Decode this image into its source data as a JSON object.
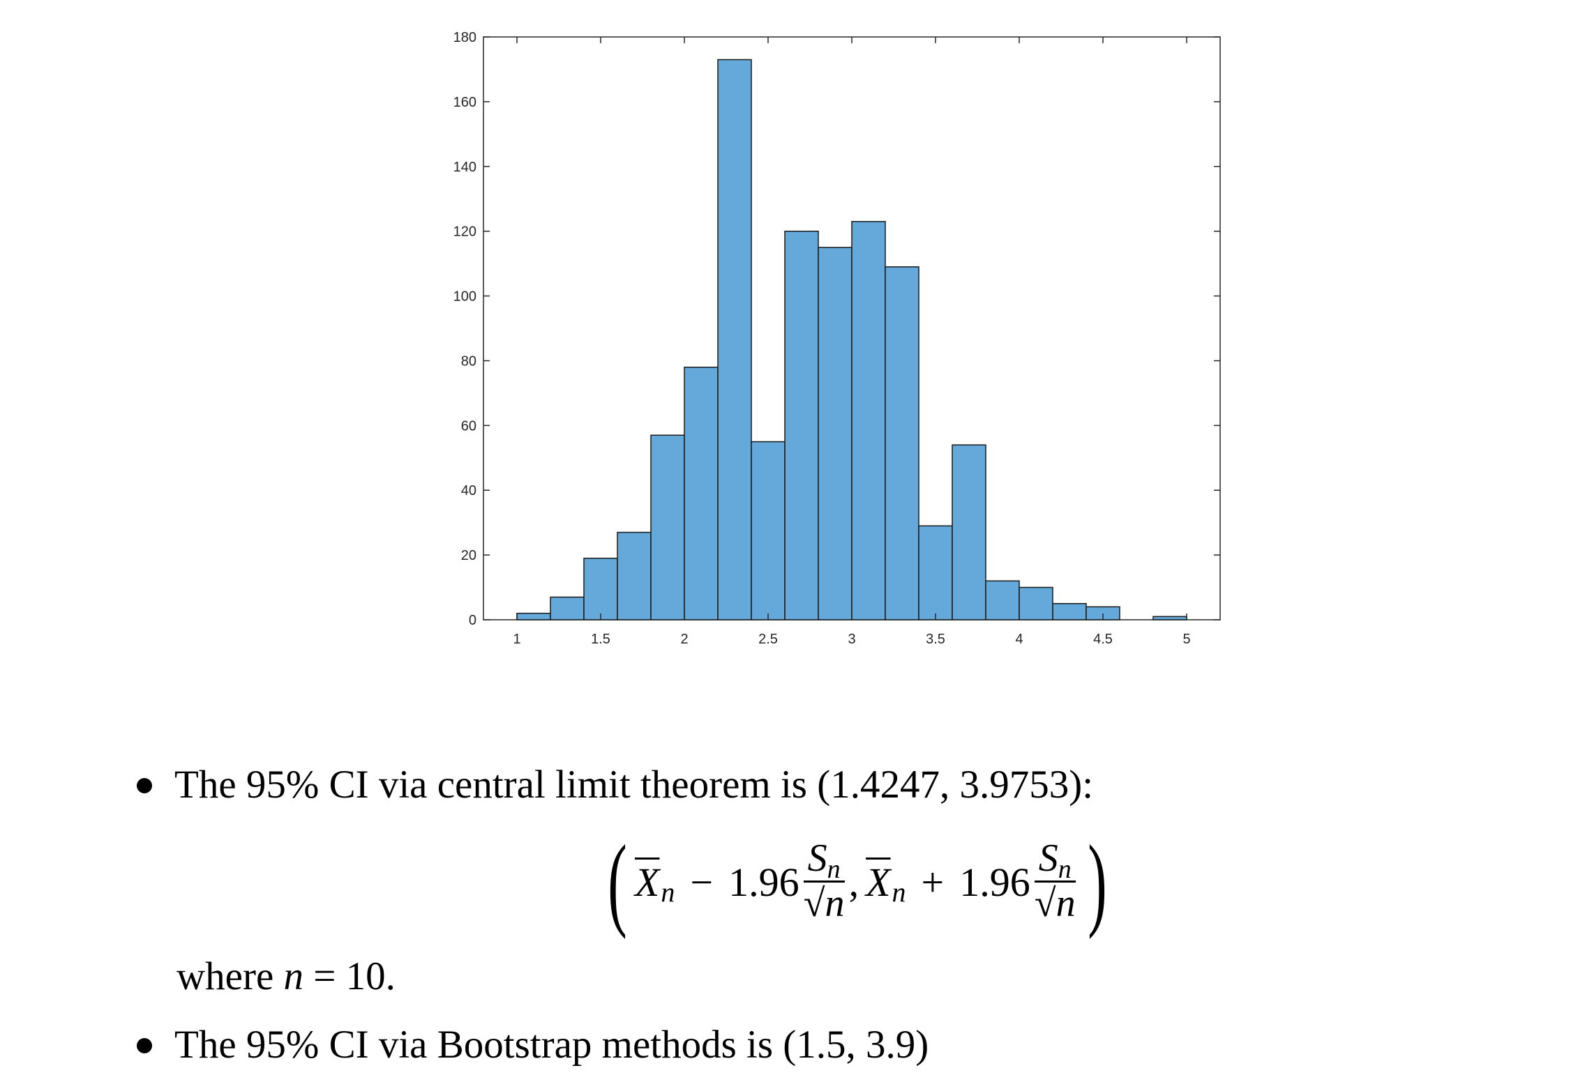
{
  "chart_data": {
    "type": "bar",
    "bin_edges": [
      1.0,
      1.2,
      1.4,
      1.6,
      1.8,
      2.0,
      2.2,
      2.4,
      2.6,
      2.8,
      3.0,
      3.2,
      3.4,
      3.6,
      3.8,
      4.0,
      4.2,
      4.4,
      4.6,
      4.8,
      5.0
    ],
    "values": [
      2,
      7,
      19,
      27,
      57,
      78,
      173,
      55,
      120,
      115,
      123,
      109,
      29,
      54,
      12,
      10,
      5,
      4,
      0,
      1
    ],
    "xlim": [
      0.8,
      5.2
    ],
    "ylim": [
      0,
      180
    ],
    "x_ticks": [
      "1",
      "1.5",
      "2",
      "2.5",
      "3",
      "3.5",
      "4",
      "4.5",
      "5"
    ],
    "y_ticks": [
      "0",
      "20",
      "40",
      "60",
      "80",
      "100",
      "120",
      "140",
      "160",
      "180"
    ],
    "bar_color": "#64a9d9",
    "edge_color": "#1a1a1a",
    "grid": false
  },
  "text": {
    "bullet1": "The 95% CI via central limit theorem is (1.4247, 3.9753):",
    "formula": {
      "open_paren": "(",
      "x_bar": "X",
      "sub_n": "n",
      "minus": "−",
      "plus": "+",
      "coef": "1.96",
      "frac_num": "S",
      "frac_num_sub": "n",
      "frac_den": "√n",
      "comma": ",",
      "close_paren": ")"
    },
    "where_prefix": "where",
    "where_var": "n",
    "where_eq": " = 10.",
    "bullet2": "The 95% CI via Bootstrap methods is (1.5, 3.9)"
  }
}
